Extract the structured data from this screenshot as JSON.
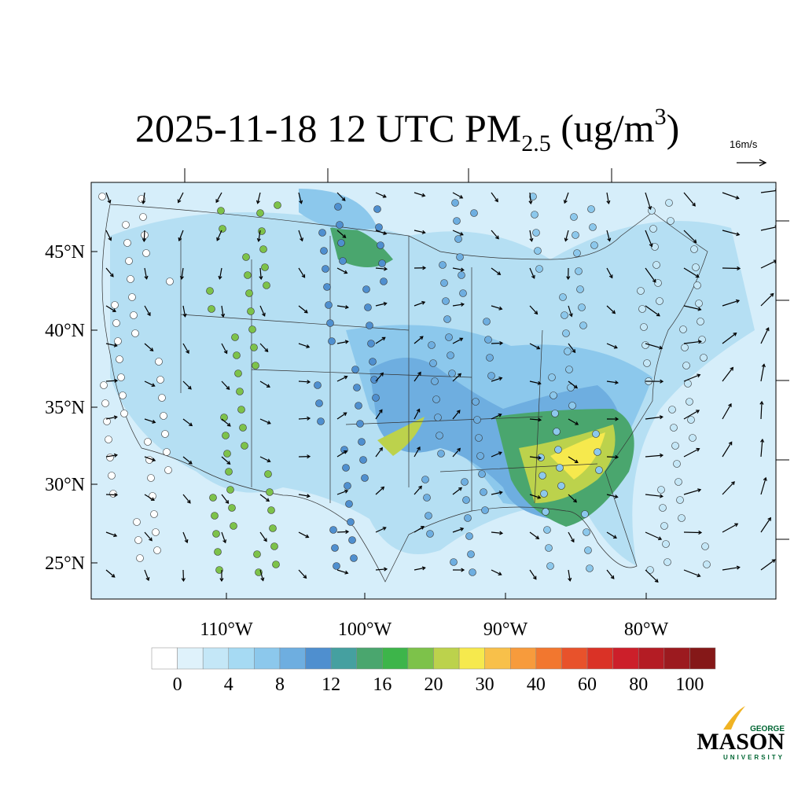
{
  "map": {
    "title": {
      "main": "2025-11-18 12 UTC PM",
      "subscript": "2.5",
      "unit_open": " (ug/m",
      "superscript": "3",
      "unit_close": ")"
    },
    "wind_reference": "16m/s",
    "lat_labels": [
      "45°N",
      "40°N",
      "35°N",
      "30°N",
      "25°N"
    ],
    "lon_labels": [
      "110°W",
      "100°W",
      "90°W",
      "80°W"
    ],
    "colorbar": {
      "colors": [
        "#ffffff",
        "#dff2fb",
        "#c4e7f7",
        "#a6daf3",
        "#8cc8ec",
        "#6eaee0",
        "#4f8fcf",
        "#45a0a0",
        "#4aa66e",
        "#3db54a",
        "#7dc24a",
        "#bcd24c",
        "#f6e94d",
        "#f8c04a",
        "#f79b3c",
        "#f2772f",
        "#e8522b",
        "#da3226",
        "#cc1f2a",
        "#b41c24",
        "#9c1a1f",
        "#851818"
      ],
      "labels": [
        0,
        4,
        8,
        12,
        16,
        20,
        30,
        40,
        60,
        80,
        100
      ]
    },
    "logo": {
      "top": "GEORGE",
      "main": "MASON",
      "bottom": "UNIVERSITY"
    }
  }
}
